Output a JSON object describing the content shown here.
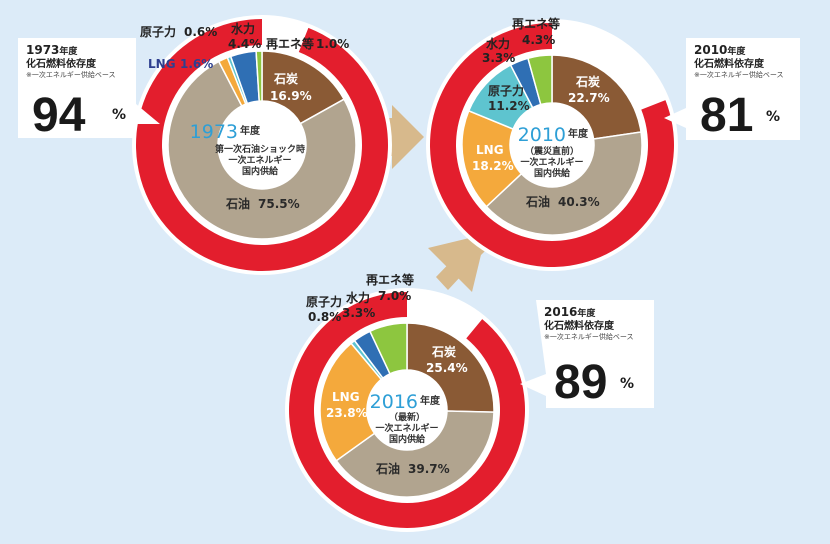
{
  "colors": {
    "outer_ring": "#e31e2d",
    "coal": "#8a5a35",
    "oil": "#b1a48f",
    "lng": "#f4a93c",
    "nuclear": "#5ec4cf",
    "hydro": "#2f6fb4",
    "renewables": "#8dc63f",
    "arrow": "#d7b98c",
    "background": "#dcebf8"
  },
  "chart_data": [
    {
      "type": "pie",
      "id": "1973",
      "year_label": "1973",
      "year_suffix": "年度",
      "description": [
        "第一次石油ショック時",
        "一次エネルギー",
        "国内供給"
      ],
      "slices": [
        {
          "key": "coal",
          "name": "石炭",
          "value": 16.9,
          "value_text": "16.9%"
        },
        {
          "key": "oil",
          "name": "石油",
          "value": 75.5,
          "value_text": "75.5%"
        },
        {
          "key": "lng",
          "name": "LNG",
          "value": 1.6,
          "value_text": "1.6%"
        },
        {
          "key": "nuclear",
          "name": "原子力",
          "value": 0.6,
          "value_text": "0.6%"
        },
        {
          "key": "hydro",
          "name": "水力",
          "value": 4.4,
          "value_text": "4.4%"
        },
        {
          "key": "renewables",
          "name": "再エネ等",
          "value": 1.0,
          "value_text": "1.0%"
        }
      ],
      "fossil_dependency": 94,
      "callout": {
        "year": "1973",
        "year_suffix": "年度",
        "title": "化石燃料依存度",
        "basis": "※一次エネルギー供給ベース",
        "value": "94",
        "unit": "%"
      }
    },
    {
      "type": "pie",
      "id": "2010",
      "year_label": "2010",
      "year_suffix": "年度",
      "description": [
        "（震災直前）",
        "一次エネルギー",
        "国内供給"
      ],
      "slices": [
        {
          "key": "coal",
          "name": "石炭",
          "value": 22.7,
          "value_text": "22.7%"
        },
        {
          "key": "oil",
          "name": "石油",
          "value": 40.3,
          "value_text": "40.3%"
        },
        {
          "key": "lng",
          "name": "LNG",
          "value": 18.2,
          "value_text": "18.2%"
        },
        {
          "key": "nuclear",
          "name": "原子力",
          "value": 11.2,
          "value_text": "11.2%"
        },
        {
          "key": "hydro",
          "name": "水力",
          "value": 3.3,
          "value_text": "3.3%"
        },
        {
          "key": "renewables",
          "name": "再エネ等",
          "value": 4.3,
          "value_text": "4.3%"
        }
      ],
      "fossil_dependency": 81,
      "callout": {
        "year": "2010",
        "year_suffix": "年度",
        "title": "化石燃料依存度",
        "basis": "※一次エネルギー供給ベース",
        "value": "81",
        "unit": "%"
      }
    },
    {
      "type": "pie",
      "id": "2016",
      "year_label": "2016",
      "year_suffix": "年度",
      "description": [
        "（最新）",
        "一次エネルギー",
        "国内供給"
      ],
      "slices": [
        {
          "key": "coal",
          "name": "石炭",
          "value": 25.4,
          "value_text": "25.4%"
        },
        {
          "key": "oil",
          "name": "石油",
          "value": 39.7,
          "value_text": "39.7%"
        },
        {
          "key": "lng",
          "name": "LNG",
          "value": 23.8,
          "value_text": "23.8%"
        },
        {
          "key": "nuclear",
          "name": "原子力",
          "value": 0.8,
          "value_text": "0.8%"
        },
        {
          "key": "hydro",
          "name": "水力",
          "value": 3.3,
          "value_text": "3.3%"
        },
        {
          "key": "renewables",
          "name": "再エネ等",
          "value": 7.0,
          "value_text": "7.0%"
        }
      ],
      "fossil_dependency": 89,
      "callout": {
        "year": "2016",
        "year_suffix": "年度",
        "title": "化石燃料依存度",
        "basis": "※一次エネルギー供給ベース",
        "value": "89",
        "unit": "%"
      }
    }
  ]
}
